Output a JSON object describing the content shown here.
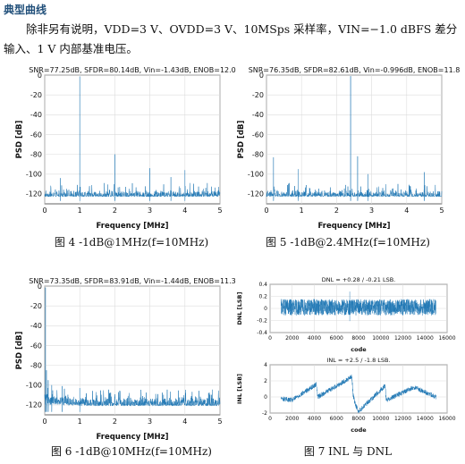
{
  "section_title": "典型曲线",
  "intro_text": "除非另有说明，VDD=3 V、OVDD=3 V、10MSps 采样率，VIN=−1.0 dBFS 差分输入、1 V 内部基准电压。",
  "chart_data": [
    {
      "type": "line",
      "title": "SNR=77.25dB, SFDR=80.14dB, Vin=-1.43dB, ENOB=12.0",
      "xlabel": "Frequency [MHz]",
      "ylabel": "PSD [dB]",
      "xlim": [
        0,
        5
      ],
      "ylim": [
        -130,
        0
      ],
      "xticks": [
        "0",
        "1",
        "2",
        "3",
        "4",
        "5"
      ],
      "yticks": [
        "0",
        "-20",
        "-40",
        "-60",
        "-80",
        "-100",
        "-120"
      ],
      "grid": true,
      "noise_floor": [
        -127,
        -115
      ],
      "peaks": [
        {
          "x": 1.0,
          "y": -1.43
        },
        {
          "x": 2.0,
          "y": -80
        },
        {
          "x": 3.0,
          "y": -94
        },
        {
          "x": 4.0,
          "y": -96
        },
        {
          "x": 0.45,
          "y": -104
        },
        {
          "x": 3.6,
          "y": -103
        }
      ],
      "caption": "图 4 -1dB@1MHz(f=10MHz)"
    },
    {
      "type": "line",
      "title": "SNR=76.35dB, SFDR=82.61dB, Vin=-0.996dB, ENOB=11.8",
      "xlabel": "Frequency [MHz]",
      "ylabel": "PSD [dB]",
      "xlim": [
        0,
        5
      ],
      "ylim": [
        -130,
        0
      ],
      "xticks": [
        "0",
        "1",
        "2",
        "3",
        "4",
        "5"
      ],
      "yticks": [
        "0",
        "-20",
        "-40",
        "-60",
        "-80",
        "-100",
        "-120"
      ],
      "grid": true,
      "noise_floor": [
        -127,
        -115
      ],
      "peaks": [
        {
          "x": 2.4,
          "y": -0.996
        },
        {
          "x": 0.2,
          "y": -83
        },
        {
          "x": 0.9,
          "y": -95
        },
        {
          "x": 2.6,
          "y": -82
        },
        {
          "x": 4.5,
          "y": -98
        },
        {
          "x": 2.9,
          "y": -100
        }
      ],
      "caption": "图 5 -1dB@2.4MHz(f=10MHz)"
    },
    {
      "type": "line",
      "title": "SNR=73.35dB, SFDR=83.91dB, Vin=-1.44dB, ENOB=11.3",
      "xlabel": "Frequency [MHz]",
      "ylabel": "PSD [dB]",
      "xlim": [
        0,
        5
      ],
      "ylim": [
        -130,
        0
      ],
      "xticks": [
        "0",
        "1",
        "2",
        "3",
        "4",
        "5"
      ],
      "yticks": [
        "0",
        "-20",
        "-40",
        "-60",
        "-80",
        "-100",
        "-120"
      ],
      "grid": true,
      "noise_floor": [
        -127,
        -110
      ],
      "peaks": [
        {
          "x": 0.02,
          "y": -1.44
        },
        {
          "x": 0.05,
          "y": -85
        },
        {
          "x": 0.1,
          "y": -95
        },
        {
          "x": 0.2,
          "y": -100
        },
        {
          "x": 0.5,
          "y": -101
        },
        {
          "x": 1.0,
          "y": -103
        }
      ],
      "caption": "图 6 -1dB@10MHz(f=10MHz)"
    },
    {
      "type": "line",
      "title": "DNL = +0.28 / -0.21 LSB.",
      "xlabel": "code",
      "ylabel": "DNL [LSB]",
      "xlim": [
        0,
        16000
      ],
      "ylim": [
        -0.4,
        0.4
      ],
      "xticks": [
        "0",
        "2000",
        "4000",
        "6000",
        "8000",
        "10000",
        "12000",
        "14000",
        "16000"
      ],
      "yticks": [
        "0.4",
        "0.2",
        "0",
        "-0.2",
        "-0.4"
      ],
      "grid": true,
      "data_range": [
        1000,
        15000
      ],
      "band": [
        -0.21,
        0.28
      ]
    },
    {
      "type": "line",
      "title": "INL = +2.5 / -1.8 LSB.",
      "xlabel": "code",
      "ylabel": "INL [LSB]",
      "xlim": [
        0,
        16000
      ],
      "ylim": [
        -2,
        4
      ],
      "xticks": [
        "0",
        "2000",
        "4000",
        "6000",
        "8000",
        "10000",
        "12000",
        "14000",
        "16000"
      ],
      "yticks": [
        "4",
        "2",
        "0",
        "-2"
      ],
      "grid": true,
      "data_range": [
        1000,
        15000
      ],
      "sawtooth": [
        [
          1000,
          -0.2
        ],
        [
          2000,
          -0.4
        ],
        [
          4200,
          1.6
        ],
        [
          4300,
          0.0
        ],
        [
          7400,
          2.5
        ],
        [
          7500,
          0.3
        ],
        [
          7700,
          -0.9
        ],
        [
          8000,
          -1.8
        ],
        [
          10400,
          1.4
        ],
        [
          10500,
          -0.4
        ],
        [
          13000,
          1.2
        ],
        [
          15000,
          0.0
        ]
      ],
      "caption": "图 7 INL 与 DNL"
    }
  ],
  "colors": {
    "trace": "#1f77b4",
    "grid": "#dcdcdc",
    "axis": "#222222",
    "heading": "#1f4e79"
  }
}
